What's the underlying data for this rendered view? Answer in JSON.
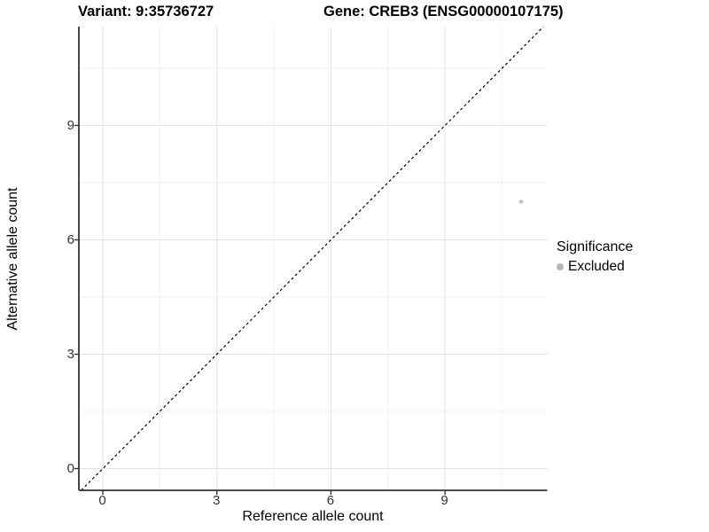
{
  "header": {
    "variant_title": "Variant: 9:35736727",
    "gene_title": "Gene: CREB3 (ENSG00000107175)"
  },
  "chart_data": {
    "type": "scatter",
    "title": "Variant: 9:35736727  Gene: CREB3 (ENSG00000107175)",
    "xlabel": "Reference allele count",
    "ylabel": "Alternative allele count",
    "xlim": [
      -0.63,
      11.69
    ],
    "ylim": [
      -0.57,
      11.59
    ],
    "x_ticks": [
      0,
      3,
      6,
      9
    ],
    "y_ticks": [
      0,
      3,
      6,
      9
    ],
    "x_minor_gridlines": [
      1.5,
      4.5,
      7.5,
      10.5
    ],
    "y_minor_gridlines": [
      1.5,
      4.5,
      7.5,
      10.5
    ],
    "grid": "on",
    "reference_line": {
      "kind": "identity",
      "slope": 1,
      "intercept": 0,
      "linetype": "dashed",
      "color": "#000000"
    },
    "series": [
      {
        "name": "Excluded",
        "color": "#c2c2c2",
        "point_radius": 2.3,
        "points": [
          {
            "x": 11,
            "y": 7
          }
        ]
      }
    ],
    "legend": {
      "position": "right",
      "title": "Significance",
      "items": [
        {
          "label": "Excluded",
          "color": "#b7b7b7"
        }
      ]
    },
    "style": {
      "axis_line_color": "#333333",
      "tick_color": "#333333",
      "major_grid_color": "#e2e2e2",
      "minor_grid_color": "#efefef",
      "panel_background": "#ffffff"
    }
  }
}
